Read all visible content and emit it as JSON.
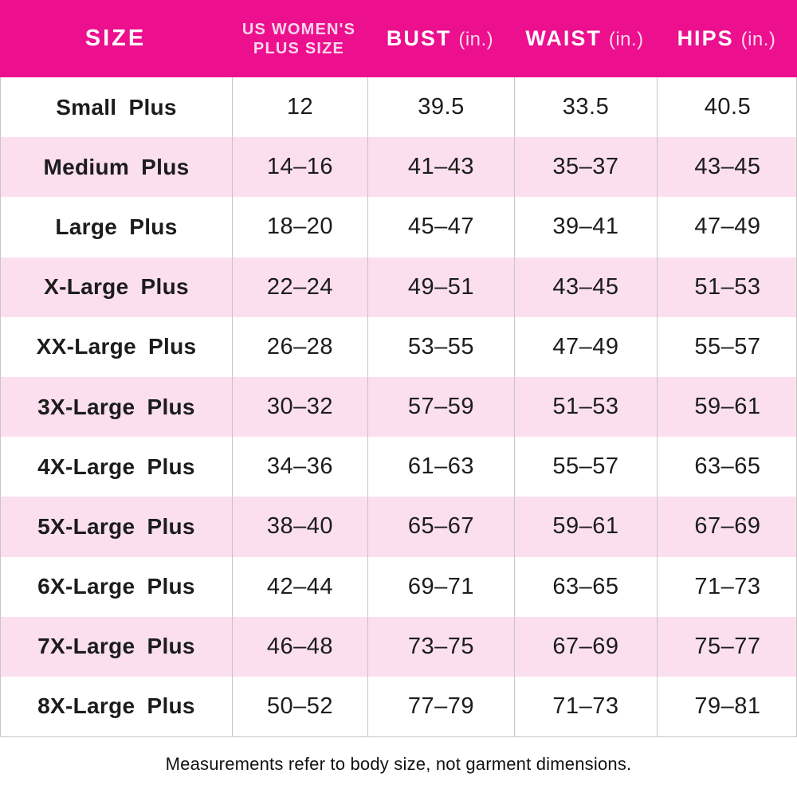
{
  "colors": {
    "header_bg": "#ec0f8e",
    "row_alt_bg": "#fbdfee",
    "divider": "#c6c6c6",
    "text": "#1c1c1c",
    "header_text": "#ffffff",
    "header_unit_text": "#f9d6e8"
  },
  "header": {
    "size_label": "SIZE",
    "plus_size_line1": "US WOMEN'S",
    "plus_size_line2": "PLUS SIZE",
    "bust_label": "BUST",
    "bust_unit": "(in.)",
    "waist_label": "WAIST",
    "waist_unit": "(in.)",
    "hips_label": "HIPS",
    "hips_unit": "(in.)"
  },
  "chart_data": {
    "type": "table",
    "columns": [
      "SIZE",
      "US WOMEN'S PLUS SIZE",
      "BUST (in.)",
      "WAIST (in.)",
      "HIPS (in.)"
    ],
    "rows": [
      {
        "size": "Small Plus",
        "plus_size": "12",
        "bust": "39.5",
        "waist": "33.5",
        "hips": "40.5"
      },
      {
        "size": "Medium Plus",
        "plus_size": "14–16",
        "bust": "41–43",
        "waist": "35–37",
        "hips": "43–45"
      },
      {
        "size": "Large Plus",
        "plus_size": "18–20",
        "bust": "45–47",
        "waist": "39–41",
        "hips": "47–49"
      },
      {
        "size": "X-Large Plus",
        "plus_size": "22–24",
        "bust": "49–51",
        "waist": "43–45",
        "hips": "51–53"
      },
      {
        "size": "XX-Large Plus",
        "plus_size": "26–28",
        "bust": "53–55",
        "waist": "47–49",
        "hips": "55–57"
      },
      {
        "size": "3X-Large Plus",
        "plus_size": "30–32",
        "bust": "57–59",
        "waist": "51–53",
        "hips": "59–61"
      },
      {
        "size": "4X-Large Plus",
        "plus_size": "34–36",
        "bust": "61–63",
        "waist": "55–57",
        "hips": "63–65"
      },
      {
        "size": "5X-Large Plus",
        "plus_size": "38–40",
        "bust": "65–67",
        "waist": "59–61",
        "hips": "67–69"
      },
      {
        "size": "6X-Large Plus",
        "plus_size": "42–44",
        "bust": "69–71",
        "waist": "63–65",
        "hips": "71–73"
      },
      {
        "size": "7X-Large Plus",
        "plus_size": "46–48",
        "bust": "73–75",
        "waist": "67–69",
        "hips": "75–77"
      },
      {
        "size": "8X-Large Plus",
        "plus_size": "50–52",
        "bust": "77–79",
        "waist": "71–73",
        "hips": "79–81"
      }
    ],
    "footnote": "Measurements refer to body size, not garment dimensions."
  },
  "footer": {
    "note": "Measurements refer to body size, not garment dimensions."
  }
}
